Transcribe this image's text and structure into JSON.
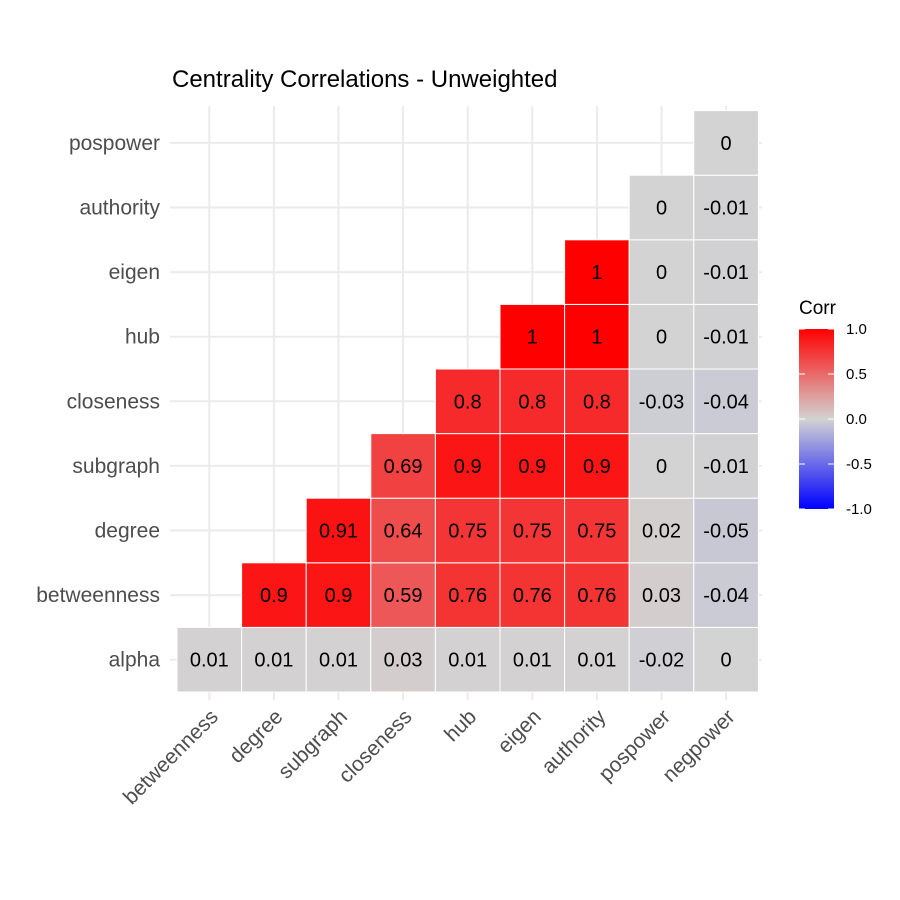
{
  "chart_data": {
    "type": "heatmap",
    "title": "Centrality Correlations - Unweighted",
    "x_categories": [
      "betweenness",
      "degree",
      "subgraph",
      "closeness",
      "hub",
      "eigen",
      "authority",
      "pospower",
      "negpower"
    ],
    "y_categories": [
      "alpha",
      "betweenness",
      "degree",
      "subgraph",
      "closeness",
      "hub",
      "eigen",
      "authority",
      "pospower"
    ],
    "cells": [
      {
        "x": "betweenness",
        "y": "alpha",
        "value": 0.01,
        "label": "0.01"
      },
      {
        "x": "degree",
        "y": "alpha",
        "value": 0.01,
        "label": "0.01"
      },
      {
        "x": "subgraph",
        "y": "alpha",
        "value": 0.01,
        "label": "0.01"
      },
      {
        "x": "closeness",
        "y": "alpha",
        "value": 0.03,
        "label": "0.03"
      },
      {
        "x": "hub",
        "y": "alpha",
        "value": 0.01,
        "label": "0.01"
      },
      {
        "x": "eigen",
        "y": "alpha",
        "value": 0.01,
        "label": "0.01"
      },
      {
        "x": "authority",
        "y": "alpha",
        "value": 0.01,
        "label": "0.01"
      },
      {
        "x": "pospower",
        "y": "alpha",
        "value": -0.02,
        "label": "-0.02"
      },
      {
        "x": "negpower",
        "y": "alpha",
        "value": 0,
        "label": "0"
      },
      {
        "x": "degree",
        "y": "betweenness",
        "value": 0.9,
        "label": "0.9"
      },
      {
        "x": "subgraph",
        "y": "betweenness",
        "value": 0.9,
        "label": "0.9"
      },
      {
        "x": "closeness",
        "y": "betweenness",
        "value": 0.59,
        "label": "0.59"
      },
      {
        "x": "hub",
        "y": "betweenness",
        "value": 0.76,
        "label": "0.76"
      },
      {
        "x": "eigen",
        "y": "betweenness",
        "value": 0.76,
        "label": "0.76"
      },
      {
        "x": "authority",
        "y": "betweenness",
        "value": 0.76,
        "label": "0.76"
      },
      {
        "x": "pospower",
        "y": "betweenness",
        "value": 0.03,
        "label": "0.03"
      },
      {
        "x": "negpower",
        "y": "betweenness",
        "value": -0.04,
        "label": "-0.04"
      },
      {
        "x": "subgraph",
        "y": "degree",
        "value": 0.91,
        "label": "0.91"
      },
      {
        "x": "closeness",
        "y": "degree",
        "value": 0.64,
        "label": "0.64"
      },
      {
        "x": "hub",
        "y": "degree",
        "value": 0.75,
        "label": "0.75"
      },
      {
        "x": "eigen",
        "y": "degree",
        "value": 0.75,
        "label": "0.75"
      },
      {
        "x": "authority",
        "y": "degree",
        "value": 0.75,
        "label": "0.75"
      },
      {
        "x": "pospower",
        "y": "degree",
        "value": 0.02,
        "label": "0.02"
      },
      {
        "x": "negpower",
        "y": "degree",
        "value": -0.05,
        "label": "-0.05"
      },
      {
        "x": "closeness",
        "y": "subgraph",
        "value": 0.69,
        "label": "0.69"
      },
      {
        "x": "hub",
        "y": "subgraph",
        "value": 0.9,
        "label": "0.9"
      },
      {
        "x": "eigen",
        "y": "subgraph",
        "value": 0.9,
        "label": "0.9"
      },
      {
        "x": "authority",
        "y": "subgraph",
        "value": 0.9,
        "label": "0.9"
      },
      {
        "x": "pospower",
        "y": "subgraph",
        "value": 0,
        "label": "0"
      },
      {
        "x": "negpower",
        "y": "subgraph",
        "value": -0.01,
        "label": "-0.01"
      },
      {
        "x": "hub",
        "y": "closeness",
        "value": 0.8,
        "label": "0.8"
      },
      {
        "x": "eigen",
        "y": "closeness",
        "value": 0.8,
        "label": "0.8"
      },
      {
        "x": "authority",
        "y": "closeness",
        "value": 0.8,
        "label": "0.8"
      },
      {
        "x": "pospower",
        "y": "closeness",
        "value": -0.03,
        "label": "-0.03"
      },
      {
        "x": "negpower",
        "y": "closeness",
        "value": -0.04,
        "label": "-0.04"
      },
      {
        "x": "eigen",
        "y": "hub",
        "value": 1,
        "label": "1"
      },
      {
        "x": "authority",
        "y": "hub",
        "value": 1,
        "label": "1"
      },
      {
        "x": "pospower",
        "y": "hub",
        "value": 0,
        "label": "0"
      },
      {
        "x": "negpower",
        "y": "hub",
        "value": -0.01,
        "label": "-0.01"
      },
      {
        "x": "authority",
        "y": "eigen",
        "value": 1,
        "label": "1"
      },
      {
        "x": "pospower",
        "y": "eigen",
        "value": 0,
        "label": "0"
      },
      {
        "x": "negpower",
        "y": "eigen",
        "value": -0.01,
        "label": "-0.01"
      },
      {
        "x": "pospower",
        "y": "authority",
        "value": 0,
        "label": "0"
      },
      {
        "x": "negpower",
        "y": "authority",
        "value": -0.01,
        "label": "-0.01"
      },
      {
        "x": "negpower",
        "y": "pospower",
        "value": 0,
        "label": "0"
      }
    ],
    "legend": {
      "title": "Corr",
      "placement": "right",
      "range": [
        -1,
        1
      ],
      "ticks": [
        {
          "value": 1.0,
          "label": "1.0"
        },
        {
          "value": 0.5,
          "label": "0.5"
        },
        {
          "value": 0.0,
          "label": "0.0"
        },
        {
          "value": -0.5,
          "label": "-0.5"
        },
        {
          "value": -1.0,
          "label": "-1.0"
        }
      ]
    },
    "colors": {
      "low": "#0000ff",
      "mid": "#d3d3d3",
      "high": "#ff0000"
    },
    "grid": true
  }
}
